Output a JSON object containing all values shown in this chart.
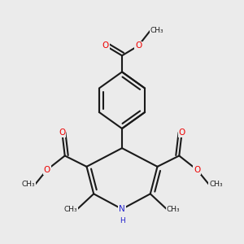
{
  "background_color": "#ebebeb",
  "bond_color": "#1a1a1a",
  "oxygen_color": "#ee0000",
  "nitrogen_color": "#2222cc",
  "line_width": 1.5,
  "figsize": [
    3.0,
    3.0
  ],
  "dpi": 100,
  "xlim": [
    -2.2,
    2.2
  ],
  "ylim": [
    -1.9,
    2.3
  ]
}
